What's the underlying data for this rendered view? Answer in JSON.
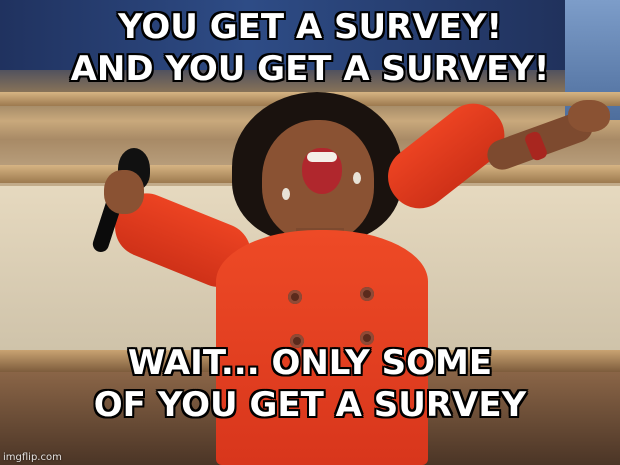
{
  "meme": {
    "top_caption": [
      "YOU GET A SURVEY!",
      "AND YOU GET A SURVEY!"
    ],
    "bottom_caption": [
      "WAIT... ONLY SOME",
      "OF YOU GET A SURVEY"
    ],
    "watermark": "imgflip.com"
  },
  "colors": {
    "dress": "#e33f20",
    "caption_fill": "#ffffff",
    "caption_outline": "#000000"
  }
}
